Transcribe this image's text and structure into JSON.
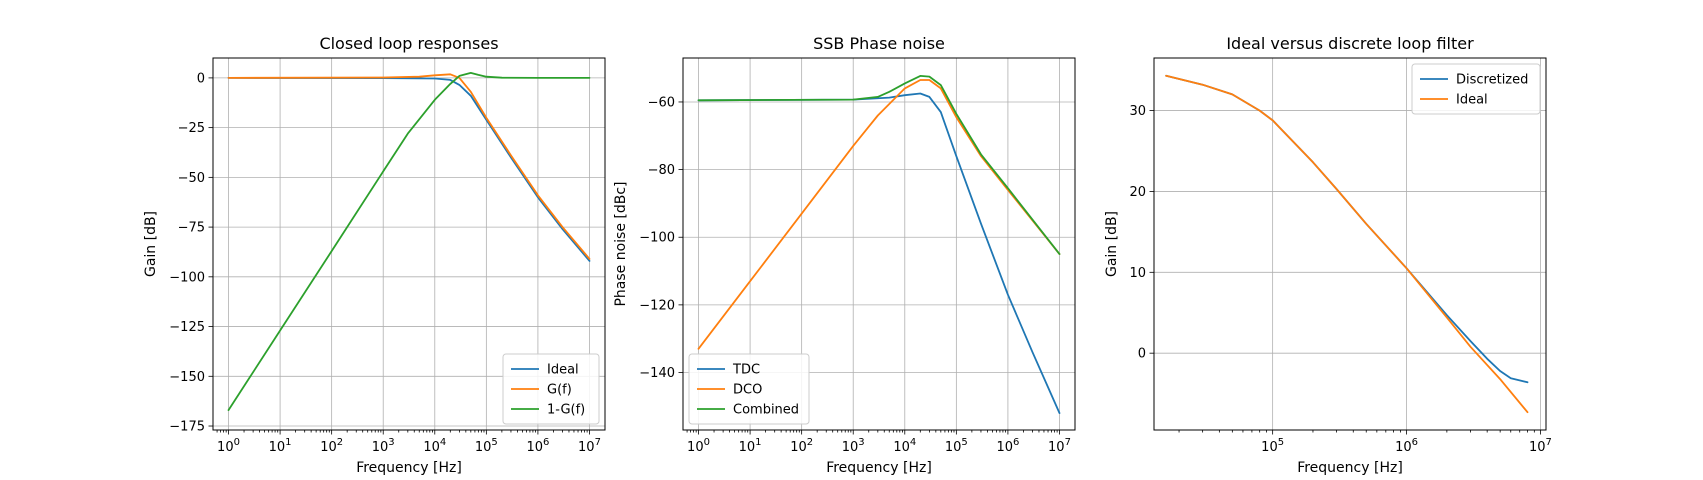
{
  "colors": {
    "blue": "#1f77b4",
    "orange": "#ff7f0e",
    "green": "#2ca02c",
    "grid": "#b0b0b0"
  },
  "chart_data": [
    {
      "type": "line",
      "title": "Closed loop responses",
      "xlabel": "Frequency [Hz]",
      "ylabel": "Gain [dB]",
      "xscale": "log",
      "xlim": [
        0.5,
        20000000
      ],
      "ylim": [
        -177,
        10
      ],
      "xticks": [
        {
          "v": 1,
          "b": "10",
          "e": "0"
        },
        {
          "v": 10,
          "b": "10",
          "e": "1"
        },
        {
          "v": 100,
          "b": "10",
          "e": "2"
        },
        {
          "v": 1000,
          "b": "10",
          "e": "3"
        },
        {
          "v": 10000,
          "b": "10",
          "e": "4"
        },
        {
          "v": 100000,
          "b": "10",
          "e": "5"
        },
        {
          "v": 1000000,
          "b": "10",
          "e": "6"
        },
        {
          "v": 10000000,
          "b": "10",
          "e": "7"
        }
      ],
      "yticks": [
        {
          "v": 0,
          "label": "0"
        },
        {
          "v": -25,
          "label": "−25"
        },
        {
          "v": -50,
          "label": "−50"
        },
        {
          "v": -75,
          "label": "−75"
        },
        {
          "v": -100,
          "label": "−100"
        },
        {
          "v": -125,
          "label": "−125"
        },
        {
          "v": -150,
          "label": "−150"
        },
        {
          "v": -175,
          "label": "−175"
        }
      ],
      "grid": true,
      "legend_position": "lower-right",
      "series": [
        {
          "name": "Ideal",
          "color": "#1f77b4",
          "x": [
            1,
            1000,
            10000,
            20000,
            30000,
            50000,
            100000,
            300000,
            1000000,
            3000000,
            10000000
          ],
          "y": [
            0,
            -0.1,
            -0.3,
            -1,
            -3.5,
            -9,
            -21,
            -40,
            -60,
            -76,
            -92
          ]
        },
        {
          "name": "G(f)",
          "color": "#ff7f0e",
          "x": [
            1,
            1000,
            5000,
            10000,
            20000,
            30000,
            50000,
            100000,
            300000,
            1000000,
            3000000,
            10000000
          ],
          "y": [
            0,
            0.2,
            0.6,
            1.3,
            1.8,
            0,
            -7,
            -20,
            -39,
            -59,
            -75,
            -91
          ]
        },
        {
          "name": "1-G(f)",
          "color": "#2ca02c",
          "x": [
            1,
            10,
            100,
            1000,
            3000,
            10000,
            20000,
            30000,
            50000,
            70000,
            100000,
            200000,
            1000000,
            10000000
          ],
          "y": [
            -167,
            -127,
            -87,
            -47,
            -28,
            -11,
            -3,
            1,
            2.5,
            1.5,
            0.6,
            0.1,
            0,
            0
          ]
        }
      ]
    },
    {
      "type": "line",
      "title": "SSB Phase noise",
      "xlabel": "Frequency [Hz]",
      "ylabel": "Phase noise [dBc]",
      "xscale": "log",
      "xlim": [
        0.5,
        20000000
      ],
      "ylim": [
        -157,
        -47
      ],
      "xticks": [
        {
          "v": 1,
          "b": "10",
          "e": "0"
        },
        {
          "v": 10,
          "b": "10",
          "e": "1"
        },
        {
          "v": 100,
          "b": "10",
          "e": "2"
        },
        {
          "v": 1000,
          "b": "10",
          "e": "3"
        },
        {
          "v": 10000,
          "b": "10",
          "e": "4"
        },
        {
          "v": 100000,
          "b": "10",
          "e": "5"
        },
        {
          "v": 1000000,
          "b": "10",
          "e": "6"
        },
        {
          "v": 10000000,
          "b": "10",
          "e": "7"
        }
      ],
      "yticks": [
        {
          "v": -60,
          "label": "−60"
        },
        {
          "v": -80,
          "label": "−80"
        },
        {
          "v": -100,
          "label": "−100"
        },
        {
          "v": -120,
          "label": "−120"
        },
        {
          "v": -140,
          "label": "−140"
        }
      ],
      "grid": true,
      "legend_position": "lower-left",
      "series": [
        {
          "name": "TDC",
          "color": "#1f77b4",
          "x": [
            1,
            1000,
            5000,
            10000,
            20000,
            30000,
            50000,
            100000,
            300000,
            1000000,
            3000000,
            10000000
          ],
          "y": [
            -59.5,
            -59.3,
            -58.7,
            -58,
            -57.5,
            -58.5,
            -63,
            -76,
            -96,
            -117,
            -134,
            -152
          ]
        },
        {
          "name": "DCO",
          "color": "#ff7f0e",
          "x": [
            1,
            10,
            100,
            1000,
            3000,
            10000,
            20000,
            30000,
            50000,
            100000,
            300000,
            1000000,
            10000000
          ],
          "y": [
            -133,
            -113,
            -93,
            -73,
            -64,
            -56,
            -53.5,
            -53.5,
            -56,
            -64.5,
            -76,
            -86,
            -105
          ]
        },
        {
          "name": "Combined",
          "color": "#2ca02c",
          "x": [
            1,
            1000,
            3000,
            5000,
            10000,
            20000,
            30000,
            50000,
            100000,
            300000,
            1000000,
            10000000
          ],
          "y": [
            -59.5,
            -59.3,
            -58.5,
            -57,
            -54.5,
            -52.3,
            -52.5,
            -55,
            -63.5,
            -75.5,
            -85.5,
            -105
          ]
        }
      ]
    },
    {
      "type": "line",
      "title": "Ideal versus discrete loop filter",
      "xlabel": "Frequency [Hz]",
      "ylabel": "Gain [dB]",
      "xscale": "log",
      "xlim": [
        13000,
        11000000
      ],
      "ylim": [
        -9.5,
        36.5
      ],
      "xticks": [
        {
          "v": 100000,
          "b": "10",
          "e": "5"
        },
        {
          "v": 1000000,
          "b": "10",
          "e": "6"
        },
        {
          "v": 10000000,
          "b": "10",
          "e": "7"
        }
      ],
      "yticks": [
        {
          "v": 0,
          "label": "0"
        },
        {
          "v": 10,
          "label": "10"
        },
        {
          "v": 20,
          "label": "20"
        },
        {
          "v": 30,
          "label": "30"
        }
      ],
      "grid": true,
      "legend_position": "upper-right",
      "series": [
        {
          "name": "Discretized",
          "color": "#1f77b4",
          "x": [
            16000,
            30000,
            50000,
            80000,
            100000,
            200000,
            300000,
            500000,
            1000000,
            2000000,
            3000000,
            4000000,
            5000000,
            6000000,
            8000000
          ],
          "y": [
            34.3,
            33.2,
            32,
            30,
            28.8,
            23.6,
            20.3,
            16,
            10.5,
            4.7,
            1.5,
            -0.7,
            -2.2,
            -3.1,
            -3.6
          ]
        },
        {
          "name": "Ideal",
          "color": "#ff7f0e",
          "x": [
            16000,
            30000,
            50000,
            80000,
            100000,
            200000,
            300000,
            500000,
            1000000,
            2000000,
            3000000,
            5000000,
            8000000
          ],
          "y": [
            34.3,
            33.2,
            32,
            30,
            28.8,
            23.6,
            20.3,
            16,
            10.5,
            4.4,
            0.8,
            -3.2,
            -7.3
          ]
        }
      ]
    }
  ]
}
